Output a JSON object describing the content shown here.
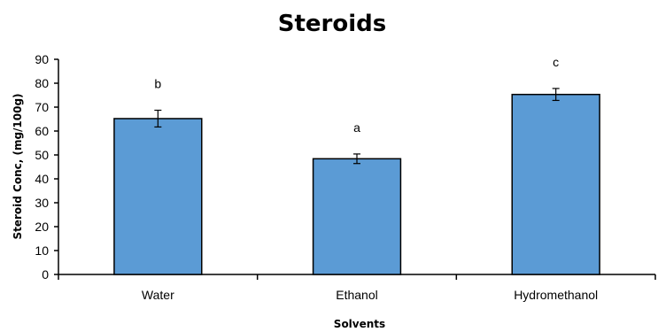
{
  "chart_data": {
    "type": "bar",
    "title": "Steroids",
    "xlabel": "Solvents",
    "ylabel": "Steroid Conc, (mg/100g)",
    "categories": [
      "Water",
      "Ethanol",
      "Hydromethanol"
    ],
    "values": [
      65.2,
      48.4,
      75.3
    ],
    "error": [
      3.5,
      2.0,
      2.5
    ],
    "significance_labels": [
      "b",
      "a",
      "c"
    ],
    "ylim": [
      0,
      90
    ],
    "yticks": [
      0,
      10,
      20,
      30,
      40,
      50,
      60,
      70,
      80,
      90
    ],
    "grid": false,
    "legend": "none",
    "bar_color": "#5b9bd5",
    "bar_edge_color": "#000000"
  }
}
